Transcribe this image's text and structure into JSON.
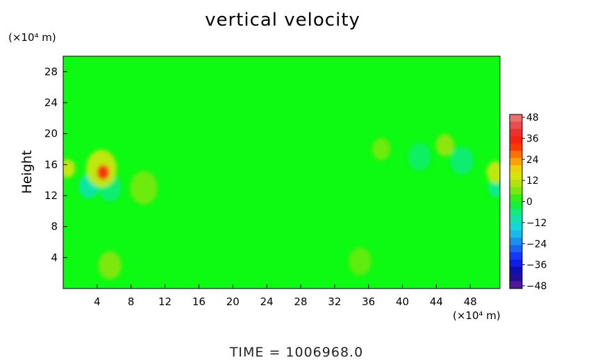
{
  "chart_data": {
    "type": "heatmap",
    "title": "vertical velocity",
    "ylabel": "Height",
    "x_unit": "(×10⁴ m)",
    "y_unit": "(×10⁴ m)",
    "xlim": [
      0,
      51.5
    ],
    "ylim": [
      0,
      30
    ],
    "x_ticks": [
      "4",
      "8",
      "12",
      "16",
      "20",
      "24",
      "28",
      "32",
      "36",
      "40",
      "44",
      "48"
    ],
    "y_ticks": [
      "4",
      "8",
      "12",
      "16",
      "20",
      "24",
      "28"
    ],
    "field_background_value": 2,
    "features": [
      {
        "x": 4.7,
        "y": 15.0,
        "value": 34,
        "radius": 0.8
      },
      {
        "x": 4.5,
        "y": 15.5,
        "value": 14,
        "radius": 2.0
      },
      {
        "x": 3.0,
        "y": 13.2,
        "value": -10,
        "radius": 1.3
      },
      {
        "x": 5.5,
        "y": 13.0,
        "value": -6,
        "radius": 1.5
      },
      {
        "x": 0.5,
        "y": 15.5,
        "value": 14,
        "radius": 1.0
      },
      {
        "x": 51.0,
        "y": 15.0,
        "value": 14,
        "radius": 1.2
      },
      {
        "x": 51.0,
        "y": 13.0,
        "value": -8,
        "radius": 1.0
      },
      {
        "x": 45.0,
        "y": 18.5,
        "value": 8,
        "radius": 1.2
      },
      {
        "x": 37.5,
        "y": 18.0,
        "value": 6,
        "radius": 1.2
      },
      {
        "x": 47.0,
        "y": 16.5,
        "value": -6,
        "radius": 1.5
      },
      {
        "x": 42.0,
        "y": 17.0,
        "value": -5,
        "radius": 1.5
      },
      {
        "x": 5.5,
        "y": 3.0,
        "value": 7,
        "radius": 1.5
      },
      {
        "x": 35.0,
        "y": 3.5,
        "value": 5,
        "radius": 1.5
      },
      {
        "x": 9.5,
        "y": 13.0,
        "value": 6,
        "radius": 1.8
      }
    ],
    "colorbar": {
      "ticks": [
        "48",
        "36",
        "24",
        "12",
        "0",
        "−12",
        "−24",
        "−36",
        "−48"
      ],
      "range": [
        -48,
        48
      ],
      "levels": 24
    },
    "colors": {
      "field": "#0dfa12",
      "positive_stops": [
        "#12f515",
        "#9ce30d",
        "#e6e60a",
        "#ff8c00",
        "#ff1a00",
        "#e63a3a",
        "#f08080"
      ],
      "negative_stops": [
        "#12f515",
        "#10e8a0",
        "#14d0e8",
        "#1a7af0",
        "#1020ff",
        "#0a0a9a",
        "#6a1a9a"
      ]
    }
  },
  "footer": {
    "time_label": "TIME  =  1006968.0"
  }
}
